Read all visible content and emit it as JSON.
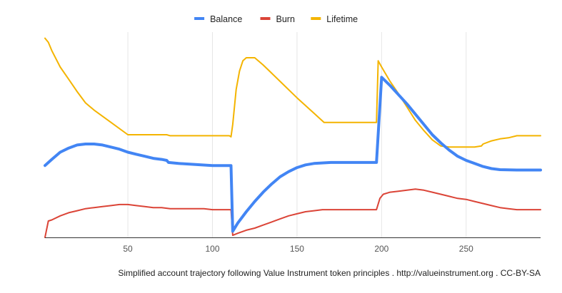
{
  "caption": "Simplified account trajectory following Value Instrument token principles . http://valueinstrument.org . CC-BY-SA",
  "chart_data": {
    "type": "line",
    "title": "",
    "xlabel": "",
    "ylabel": "",
    "xlim": [
      1,
      294
    ],
    "ylim": [
      0,
      100
    ],
    "x_ticks": [
      50,
      100,
      150,
      200,
      250
    ],
    "grid": "vertical",
    "legend_position": "top-center",
    "series": [
      {
        "name": "Balance",
        "color": "#4285f4",
        "line_width": 4,
        "points": [
          [
            1,
            35
          ],
          [
            5,
            38
          ],
          [
            10,
            41.5
          ],
          [
            15,
            43.5
          ],
          [
            20,
            45
          ],
          [
            25,
            45.5
          ],
          [
            30,
            45.5
          ],
          [
            35,
            45
          ],
          [
            40,
            44
          ],
          [
            45,
            43
          ],
          [
            50,
            41.5
          ],
          [
            55,
            40.5
          ],
          [
            60,
            39.5
          ],
          [
            65,
            38.5
          ],
          [
            70,
            38
          ],
          [
            73,
            37.5
          ],
          [
            74,
            36.5
          ],
          [
            80,
            36
          ],
          [
            90,
            35.5
          ],
          [
            100,
            35
          ],
          [
            110,
            35
          ],
          [
            111,
            35
          ],
          [
            112,
            3
          ],
          [
            115,
            7
          ],
          [
            120,
            12.5
          ],
          [
            125,
            17.5
          ],
          [
            130,
            22
          ],
          [
            135,
            26
          ],
          [
            140,
            29.5
          ],
          [
            145,
            32
          ],
          [
            150,
            34
          ],
          [
            155,
            35.3
          ],
          [
            160,
            36
          ],
          [
            170,
            36.5
          ],
          [
            180,
            36.5
          ],
          [
            190,
            36.5
          ],
          [
            197,
            36.5
          ],
          [
            200,
            78
          ],
          [
            205,
            74
          ],
          [
            210,
            69.5
          ],
          [
            215,
            65
          ],
          [
            220,
            60
          ],
          [
            225,
            55
          ],
          [
            230,
            50
          ],
          [
            235,
            46
          ],
          [
            240,
            42.5
          ],
          [
            245,
            39.5
          ],
          [
            250,
            37.5
          ],
          [
            255,
            36
          ],
          [
            260,
            34.5
          ],
          [
            265,
            33.5
          ],
          [
            270,
            33
          ],
          [
            280,
            32.8
          ],
          [
            294,
            32.8
          ]
        ]
      },
      {
        "name": "Burn",
        "color": "#db4437",
        "line_width": 2,
        "points": [
          [
            1,
            0
          ],
          [
            3,
            8
          ],
          [
            5,
            8.5
          ],
          [
            10,
            10.5
          ],
          [
            15,
            12
          ],
          [
            20,
            13
          ],
          [
            25,
            14
          ],
          [
            30,
            14.5
          ],
          [
            35,
            15
          ],
          [
            40,
            15.5
          ],
          [
            45,
            16
          ],
          [
            50,
            16
          ],
          [
            55,
            15.5
          ],
          [
            60,
            15
          ],
          [
            65,
            14.5
          ],
          [
            70,
            14.5
          ],
          [
            75,
            14
          ],
          [
            80,
            14
          ],
          [
            85,
            14
          ],
          [
            90,
            14
          ],
          [
            95,
            14
          ],
          [
            100,
            13.5
          ],
          [
            110,
            13.5
          ],
          [
            111,
            13.5
          ],
          [
            112,
            1
          ],
          [
            115,
            2
          ],
          [
            120,
            3.5
          ],
          [
            125,
            4.5
          ],
          [
            130,
            6
          ],
          [
            135,
            7.5
          ],
          [
            140,
            9
          ],
          [
            145,
            10.5
          ],
          [
            150,
            11.5
          ],
          [
            155,
            12.5
          ],
          [
            160,
            13
          ],
          [
            165,
            13.5
          ],
          [
            175,
            13.5
          ],
          [
            185,
            13.5
          ],
          [
            195,
            13.5
          ],
          [
            197,
            13.5
          ],
          [
            199,
            19
          ],
          [
            201,
            21
          ],
          [
            205,
            22
          ],
          [
            210,
            22.5
          ],
          [
            215,
            23
          ],
          [
            220,
            23.5
          ],
          [
            225,
            23
          ],
          [
            230,
            22
          ],
          [
            235,
            21
          ],
          [
            240,
            20
          ],
          [
            245,
            19
          ],
          [
            250,
            18.5
          ],
          [
            255,
            17.5
          ],
          [
            260,
            16.5
          ],
          [
            265,
            15.5
          ],
          [
            270,
            14.5
          ],
          [
            275,
            14
          ],
          [
            280,
            13.5
          ],
          [
            285,
            13.5
          ],
          [
            294,
            13.5
          ]
        ]
      },
      {
        "name": "Lifetime",
        "color": "#f4b400",
        "line_width": 2,
        "points": [
          [
            1,
            97
          ],
          [
            3,
            95
          ],
          [
            5,
            91
          ],
          [
            10,
            83
          ],
          [
            15,
            77
          ],
          [
            20,
            71
          ],
          [
            25,
            65.5
          ],
          [
            30,
            62
          ],
          [
            40,
            56
          ],
          [
            50,
            50
          ],
          [
            60,
            50
          ],
          [
            65,
            50
          ],
          [
            70,
            50
          ],
          [
            73,
            50
          ],
          [
            75,
            49.5
          ],
          [
            80,
            49.5
          ],
          [
            90,
            49.5
          ],
          [
            100,
            49.5
          ],
          [
            110,
            49.5
          ],
          [
            111,
            49
          ],
          [
            112,
            55
          ],
          [
            114,
            72
          ],
          [
            116,
            81
          ],
          [
            118,
            86
          ],
          [
            120,
            87.5
          ],
          [
            125,
            87.5
          ],
          [
            130,
            84
          ],
          [
            140,
            76
          ],
          [
            150,
            68
          ],
          [
            160,
            60.5
          ],
          [
            166,
            56
          ],
          [
            170,
            56
          ],
          [
            180,
            56
          ],
          [
            190,
            56
          ],
          [
            197,
            56
          ],
          [
            198,
            86
          ],
          [
            200,
            83
          ],
          [
            205,
            76
          ],
          [
            210,
            70
          ],
          [
            215,
            63.5
          ],
          [
            220,
            57
          ],
          [
            225,
            52
          ],
          [
            230,
            47.5
          ],
          [
            235,
            44.5
          ],
          [
            240,
            44
          ],
          [
            245,
            44
          ],
          [
            250,
            44
          ],
          [
            255,
            44
          ],
          [
            259,
            44.5
          ],
          [
            260,
            45.5
          ],
          [
            265,
            47
          ],
          [
            270,
            48
          ],
          [
            275,
            48.5
          ],
          [
            280,
            49.5
          ],
          [
            285,
            49.5
          ],
          [
            294,
            49.5
          ]
        ]
      }
    ]
  }
}
